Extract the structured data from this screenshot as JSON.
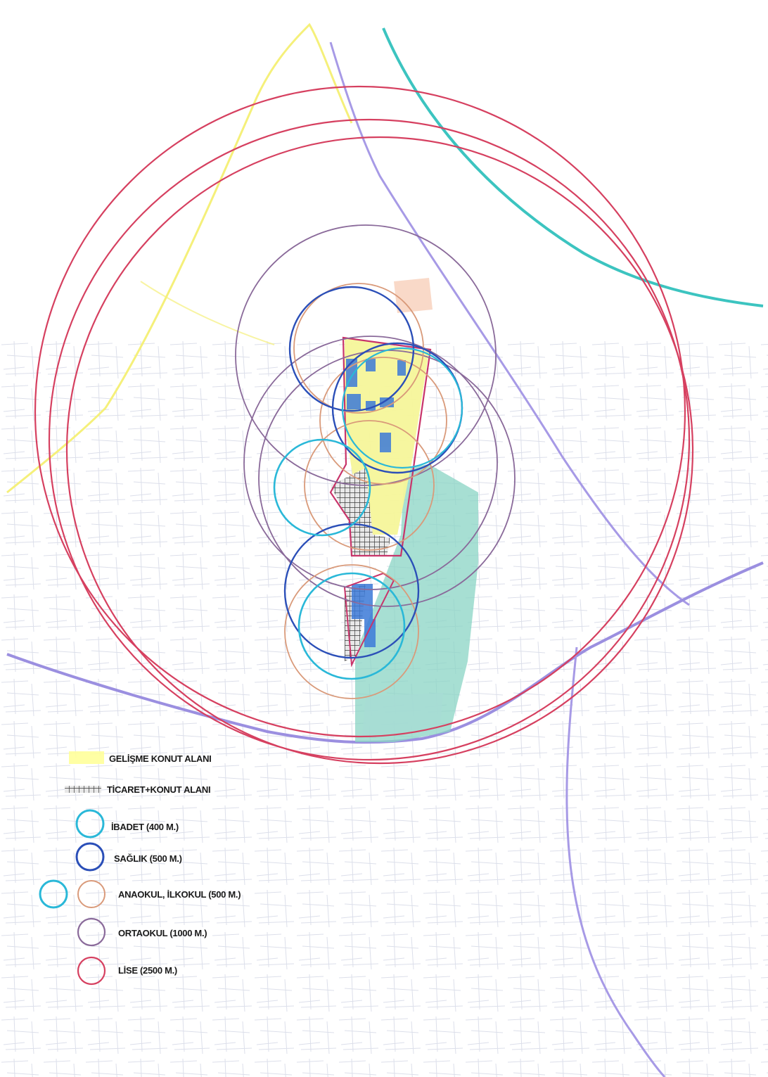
{
  "legend": {
    "items": [
      {
        "key": "gelisme",
        "label": "GELİŞME KONUT ALANI",
        "symbol": "fill",
        "color": "#ffff9a"
      },
      {
        "key": "ticaret",
        "label": "TİCARET+KONUT ALANI",
        "symbol": "hatch",
        "color": "#444444"
      },
      {
        "key": "ibadet",
        "label": "İBADET (400 M.)",
        "symbol": "circle",
        "color": "#2ab8d8"
      },
      {
        "key": "saglik",
        "label": "SAĞLIK (500 M.)",
        "symbol": "circle",
        "color": "#2b4fb8"
      },
      {
        "key": "anaokul",
        "label": "ANAOKUL, İLKOKUL (500 M.)",
        "symbol": "circle",
        "color": "#d99a7a"
      },
      {
        "key": "ortaokul",
        "label": "ORTAOKUL (1000 M.)",
        "symbol": "circle",
        "color": "#8a6a9a"
      },
      {
        "key": "lise",
        "label": "LİSE (2500 M.)",
        "symbol": "circle",
        "color": "#d64060"
      }
    ]
  },
  "map": {
    "colors": {
      "road_yellow": "#f5f07a",
      "road_teal": "#3cc4c0",
      "road_purple": "#9b8fe0",
      "green_area": "#7ecfc0",
      "block_outline": "#c8346a",
      "building_blue": "#3c7ad8",
      "hatch": "#555555"
    }
  }
}
